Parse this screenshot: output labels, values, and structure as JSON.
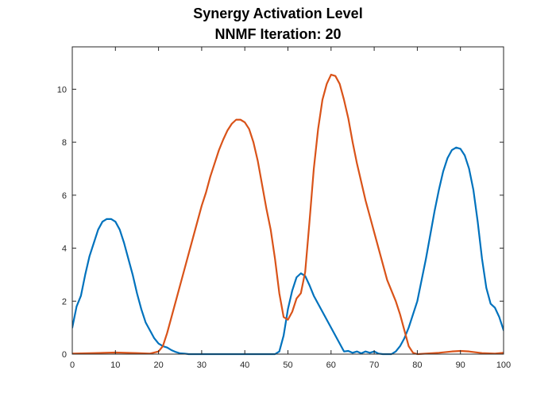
{
  "chart_data": {
    "type": "line",
    "title": "Synergy Activation Level",
    "subtitle": "NNMF Iteration: 20",
    "xlabel": "",
    "ylabel": "",
    "xlim": [
      0,
      100
    ],
    "ylim": [
      0,
      11.6
    ],
    "xticks": [
      "0",
      "10",
      "20",
      "30",
      "40",
      "50",
      "60",
      "70",
      "80",
      "90",
      "100"
    ],
    "yticks": [
      "0",
      "2",
      "4",
      "6",
      "8",
      "10"
    ],
    "grid": false,
    "legend": "none",
    "axis_color": "#262626",
    "series": [
      {
        "color": "#0072BD",
        "x": [
          0,
          1,
          2,
          3,
          4,
          5,
          6,
          7,
          8,
          9,
          10,
          11,
          12,
          13,
          14,
          15,
          16,
          17,
          18,
          19,
          20,
          21,
          22,
          23,
          24,
          25,
          26,
          27,
          28,
          30,
          35,
          40,
          45,
          47,
          48,
          49,
          50,
          51,
          52,
          53,
          54,
          55,
          56,
          57,
          58,
          59,
          60,
          61,
          62,
          63,
          64,
          65,
          66,
          67,
          68,
          69,
          70,
          71,
          72,
          73,
          74,
          75,
          76,
          77,
          78,
          79,
          80,
          81,
          82,
          83,
          84,
          85,
          86,
          87,
          88,
          89,
          90,
          91,
          92,
          93,
          94,
          95,
          96,
          97,
          98,
          99,
          100
        ],
        "y": [
          1.0,
          1.8,
          2.2,
          3.0,
          3.7,
          4.2,
          4.7,
          5.0,
          5.1,
          5.1,
          5.0,
          4.7,
          4.2,
          3.6,
          3.0,
          2.3,
          1.7,
          1.2,
          0.9,
          0.6,
          0.4,
          0.3,
          0.25,
          0.15,
          0.08,
          0.03,
          0.02,
          0.0,
          0.0,
          0.0,
          0.0,
          0.0,
          0.0,
          0.0,
          0.1,
          0.7,
          1.7,
          2.4,
          2.9,
          3.05,
          2.95,
          2.6,
          2.2,
          1.9,
          1.6,
          1.3,
          1.0,
          0.7,
          0.4,
          0.1,
          0.12,
          0.05,
          0.1,
          0.03,
          0.1,
          0.05,
          0.1,
          0.02,
          0.0,
          0.0,
          0.0,
          0.1,
          0.3,
          0.6,
          1.0,
          1.5,
          2.0,
          2.8,
          3.6,
          4.5,
          5.4,
          6.2,
          6.9,
          7.4,
          7.7,
          7.8,
          7.75,
          7.5,
          7.0,
          6.2,
          5.0,
          3.6,
          2.5,
          1.9,
          1.75,
          1.4,
          0.9
        ]
      },
      {
        "color": "#D95319",
        "x": [
          0,
          5,
          10,
          15,
          18,
          20,
          21,
          22,
          23,
          24,
          25,
          26,
          27,
          28,
          29,
          30,
          31,
          32,
          33,
          34,
          35,
          36,
          37,
          38,
          39,
          40,
          41,
          42,
          43,
          44,
          45,
          46,
          47,
          48,
          49,
          50,
          51,
          52,
          53,
          54,
          55,
          56,
          57,
          58,
          59,
          60,
          61,
          62,
          63,
          64,
          65,
          66,
          67,
          68,
          69,
          70,
          71,
          72,
          73,
          74,
          75,
          76,
          77,
          78,
          79,
          80,
          85,
          88,
          90,
          92,
          95,
          98,
          100
        ],
        "y": [
          0.02,
          0.04,
          0.06,
          0.04,
          0.02,
          0.1,
          0.3,
          0.8,
          1.4,
          2.0,
          2.6,
          3.2,
          3.8,
          4.4,
          5.0,
          5.6,
          6.1,
          6.7,
          7.2,
          7.7,
          8.1,
          8.45,
          8.7,
          8.85,
          8.85,
          8.75,
          8.5,
          8.0,
          7.3,
          6.4,
          5.5,
          4.7,
          3.6,
          2.3,
          1.4,
          1.3,
          1.6,
          2.1,
          2.3,
          3.1,
          5.0,
          7.0,
          8.5,
          9.6,
          10.2,
          10.55,
          10.5,
          10.2,
          9.6,
          8.9,
          8.0,
          7.2,
          6.5,
          5.8,
          5.2,
          4.6,
          4.0,
          3.4,
          2.8,
          2.4,
          2.0,
          1.5,
          0.9,
          0.3,
          0.05,
          0.0,
          0.05,
          0.1,
          0.12,
          0.1,
          0.04,
          0.02,
          0.05
        ]
      }
    ]
  }
}
